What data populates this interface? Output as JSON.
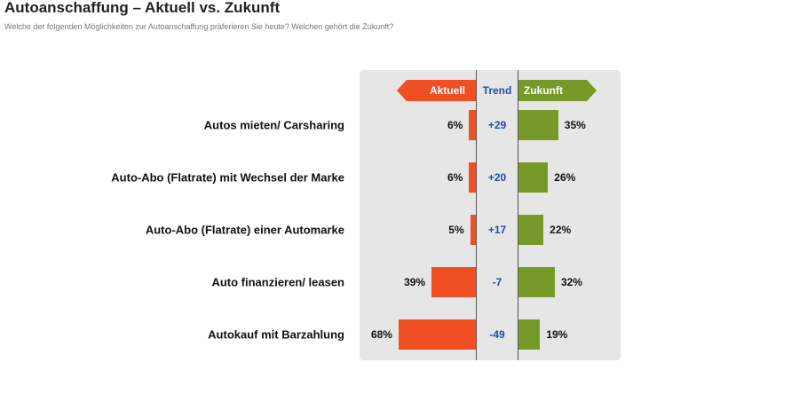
{
  "title": "Autoanschaffung – Aktuell vs. Zukunft",
  "subtitle": "Welche der folgenden Möglichkeiten zur Autoanschaffung präferieren Sie heute? Welchen gehört die Zukunft?",
  "headers": {
    "current": "Aktuell",
    "trend": "Trend",
    "future": "Zukunft"
  },
  "colors": {
    "current": "#f04e23",
    "future": "#76992a",
    "trend": "#1f4e9c",
    "panel": "#e6e6e6"
  },
  "chart_data": {
    "type": "bar",
    "categories": [
      "Autos mieten/ Carsharing",
      "Auto-Abo (Flatrate) mit Wechsel der Marke",
      "Auto-Abo (Flatrate) einer Automarke",
      "Auto finanzieren/ leasen",
      "Autokauf mit Barzahlung"
    ],
    "series": [
      {
        "name": "Aktuell",
        "values": [
          6,
          6,
          5,
          39,
          68
        ],
        "labels": [
          "6%",
          "6%",
          "5%",
          "39%",
          "68%"
        ]
      },
      {
        "name": "Zukunft",
        "values": [
          35,
          26,
          22,
          32,
          19
        ],
        "labels": [
          "35%",
          "26%",
          "22%",
          "32%",
          "19%"
        ]
      }
    ],
    "trend": [
      "+29",
      "+20",
      "+17",
      "-7",
      "-49"
    ]
  }
}
